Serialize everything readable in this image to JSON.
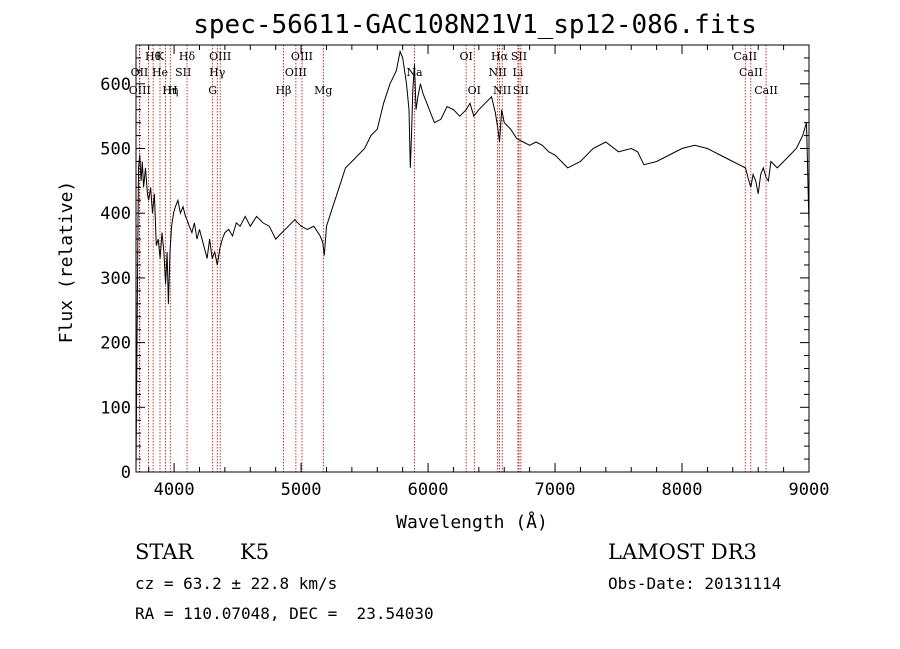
{
  "chart_data": {
    "type": "line",
    "title": "spec-56611-GAC108N21V1_sp12-086.fits",
    "xlabel": "Wavelength (Å)",
    "ylabel": "Flux (relative)",
    "xlim": [
      3700,
      9000
    ],
    "ylim": [
      0,
      660
    ],
    "xticks": [
      4000,
      5000,
      6000,
      7000,
      8000,
      9000
    ],
    "yticks": [
      0,
      100,
      200,
      300,
      400,
      500,
      600
    ],
    "grid": false,
    "series": [
      {
        "x": [
          3700,
          3710,
          3720,
          3730,
          3740,
          3750,
          3760,
          3775,
          3790,
          3800,
          3815,
          3830,
          3845,
          3860,
          3875,
          3890,
          3905,
          3920,
          3933,
          3945,
          3955,
          3968,
          3980,
          3995,
          4010,
          4030,
          4050,
          4070,
          4090,
          4102,
          4120,
          4140,
          4160,
          4180,
          4200,
          4220,
          4240,
          4260,
          4280,
          4300,
          4320,
          4340,
          4360,
          4380,
          4400,
          4430,
          4460,
          4490,
          4520,
          4560,
          4600,
          4650,
          4700,
          4750,
          4800,
          4850,
          4900,
          4950,
          5000,
          5050,
          5100,
          5150,
          5170,
          5183,
          5200,
          5250,
          5300,
          5350,
          5400,
          5450,
          5500,
          5550,
          5600,
          5650,
          5700,
          5750,
          5780,
          5800,
          5830,
          5850,
          5860,
          5870,
          5880,
          5893,
          5905,
          5920,
          5940,
          5960,
          5990,
          6020,
          6050,
          6100,
          6150,
          6200,
          6250,
          6300,
          6330,
          6360,
          6400,
          6450,
          6500,
          6530,
          6550,
          6563,
          6580,
          6600,
          6650,
          6700,
          6750,
          6800,
          6850,
          6900,
          6950,
          7000,
          7050,
          7100,
          7150,
          7200,
          7300,
          7400,
          7500,
          7600,
          7650,
          7700,
          7800,
          7900,
          8000,
          8100,
          8200,
          8250,
          8300,
          8400,
          8450,
          8500,
          8520,
          8542,
          8560,
          8580,
          8600,
          8620,
          8640,
          8662,
          8680,
          8700,
          8750,
          8800,
          8850,
          8900,
          8950,
          8980,
          9000
        ],
        "values": [
          0,
          260,
          470,
          490,
          450,
          480,
          440,
          470,
          430,
          420,
          440,
          400,
          430,
          350,
          360,
          330,
          370,
          340,
          290,
          340,
          260,
          340,
          380,
          400,
          410,
          420,
          400,
          410,
          395,
          390,
          380,
          370,
          385,
          360,
          375,
          360,
          345,
          330,
          360,
          330,
          340,
          320,
          345,
          360,
          370,
          375,
          365,
          385,
          380,
          395,
          380,
          395,
          385,
          380,
          360,
          370,
          380,
          390,
          380,
          375,
          380,
          365,
          355,
          335,
          380,
          410,
          440,
          470,
          480,
          490,
          500,
          520,
          530,
          570,
          600,
          620,
          650,
          640,
          600,
          560,
          470,
          520,
          590,
          630,
          560,
          580,
          600,
          585,
          570,
          555,
          540,
          545,
          565,
          560,
          550,
          560,
          570,
          550,
          560,
          570,
          580,
          555,
          530,
          510,
          560,
          540,
          530,
          515,
          510,
          505,
          510,
          505,
          495,
          490,
          480,
          470,
          475,
          480,
          500,
          510,
          495,
          500,
          495,
          475,
          480,
          490,
          500,
          505,
          500,
          495,
          490,
          480,
          475,
          470,
          455,
          440,
          460,
          450,
          430,
          460,
          470,
          455,
          450,
          480,
          470,
          480,
          490,
          500,
          520,
          540,
          380
        ]
      }
    ],
    "lines_top_row1": [
      {
        "x": 3835,
        "label": "Hθ"
      },
      {
        "x": 3889,
        "label": "K"
      },
      {
        "x": 4102,
        "label": "Hδ"
      },
      {
        "x": 4363,
        "label": "OIII"
      },
      {
        "x": 5007,
        "label": "OIII"
      },
      {
        "x": 6300,
        "label": "OI"
      },
      {
        "x": 6563,
        "label": "Hα"
      },
      {
        "x": 6716,
        "label": "SII"
      },
      {
        "x": 8498,
        "label": "CaII"
      }
    ],
    "lines_top_row2": [
      {
        "x": 3727,
        "label": "OII"
      },
      {
        "x": 3889,
        "label": "He"
      },
      {
        "x": 4072,
        "label": "SII"
      },
      {
        "x": 4340,
        "label": "Hγ"
      },
      {
        "x": 4959,
        "label": "OIII"
      },
      {
        "x": 5893,
        "label": "Na"
      },
      {
        "x": 6548,
        "label": "NII"
      },
      {
        "x": 6708,
        "label": "Li"
      },
      {
        "x": 8542,
        "label": "CaII"
      }
    ],
    "lines_top_row3": [
      {
        "x": 3730,
        "label": "OIII"
      },
      {
        "x": 3970,
        "label": "Hη"
      },
      {
        "x": 3990,
        "label": "H"
      },
      {
        "x": 4304,
        "label": "G"
      },
      {
        "x": 4861,
        "label": "Hβ"
      },
      {
        "x": 5175,
        "label": "Mg"
      },
      {
        "x": 6364,
        "label": "OI"
      },
      {
        "x": 6584,
        "label": "NII"
      },
      {
        "x": 6731,
        "label": "SII"
      },
      {
        "x": 8662,
        "label": "CaII"
      }
    ],
    "line_marks": [
      3727,
      3730,
      3798,
      3835,
      3889,
      3933,
      3970,
      4102,
      4304,
      4340,
      4363,
      4861,
      4959,
      5007,
      5175,
      5893,
      6300,
      6364,
      6548,
      6563,
      6584,
      6708,
      6716,
      6731,
      8498,
      8542,
      8662
    ]
  },
  "info": {
    "object_type": "STAR",
    "subclass": "K5",
    "survey": "LAMOST DR3",
    "cz": "cz = 63.2 ± 22.8 km/s",
    "obs_date": "Obs-Date: 20131114",
    "coords": "RA = 110.07048, DEC =  23.54030"
  }
}
